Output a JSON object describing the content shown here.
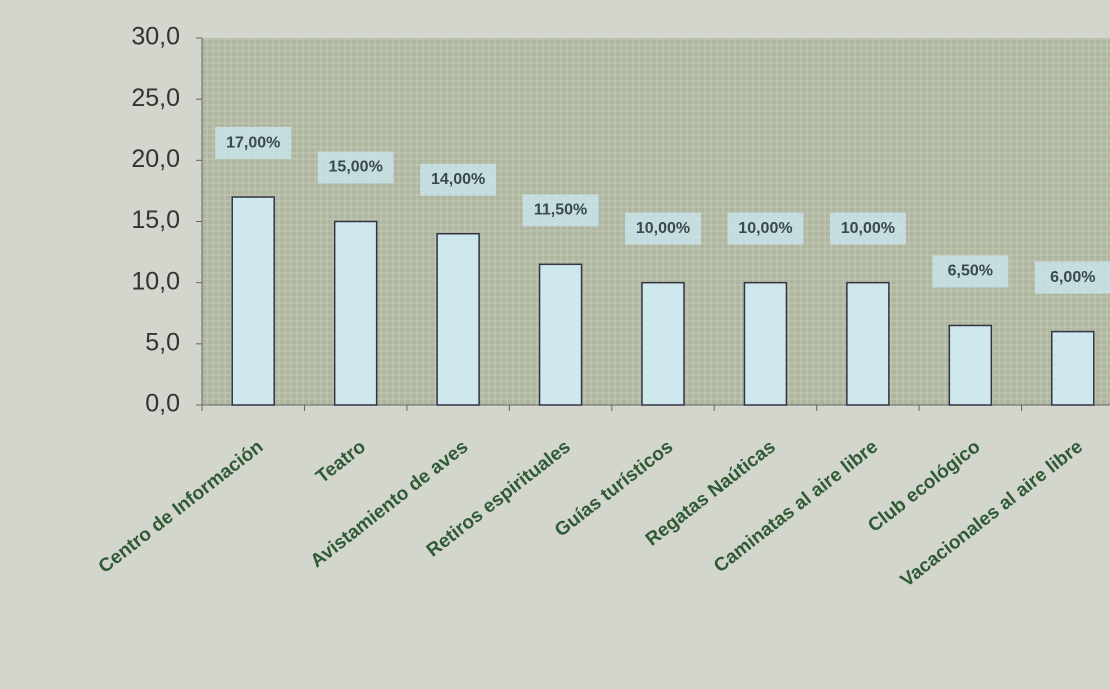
{
  "chart_data": {
    "type": "bar",
    "categories": [
      "Centro de Información",
      "Teatro",
      "Avistamiento de aves",
      "Retiros espirituales",
      "Guías turísticos",
      "Regatas Naúticas",
      "Caminatas al aire libre",
      "Club ecológico",
      "Vacacionales al aire libre"
    ],
    "values": [
      17,
      15,
      14,
      11.5,
      10,
      10,
      10,
      6.5,
      6
    ],
    "value_labels": [
      "17,00%",
      "15,00%",
      "14,00%",
      "11,50%",
      "10,00%",
      "10,00%",
      "10,00%",
      "6,50%",
      "6,00%"
    ],
    "color": "#cfe8ee",
    "ylim": [
      0,
      30
    ],
    "yticks": [
      {
        "value": 0,
        "label": "0,0"
      },
      {
        "value": 5,
        "label": "5,0"
      },
      {
        "value": 10,
        "label": "10,0"
      },
      {
        "value": 15,
        "label": "15,0"
      },
      {
        "value": 20,
        "label": "20,0"
      },
      {
        "value": 25,
        "label": "25,0"
      },
      {
        "value": 30,
        "label": "30,0"
      }
    ]
  }
}
